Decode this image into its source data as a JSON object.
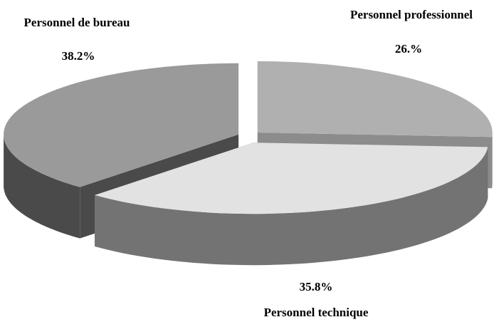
{
  "chart_data": {
    "type": "pie3d",
    "categories": [
      "Personnel professionnel",
      "Personnel technique",
      "Personnel de bureau"
    ],
    "values": [
      26,
      35.8,
      38.2
    ],
    "value_labels": [
      "26.%",
      "35.8%",
      "38.2%"
    ],
    "colors": [
      "#b0b0b0",
      "#e2e2e2",
      "#9a9a9a"
    ],
    "side_colors": [
      "#8c8c8c",
      "#737373",
      "#4a4a4a"
    ]
  }
}
